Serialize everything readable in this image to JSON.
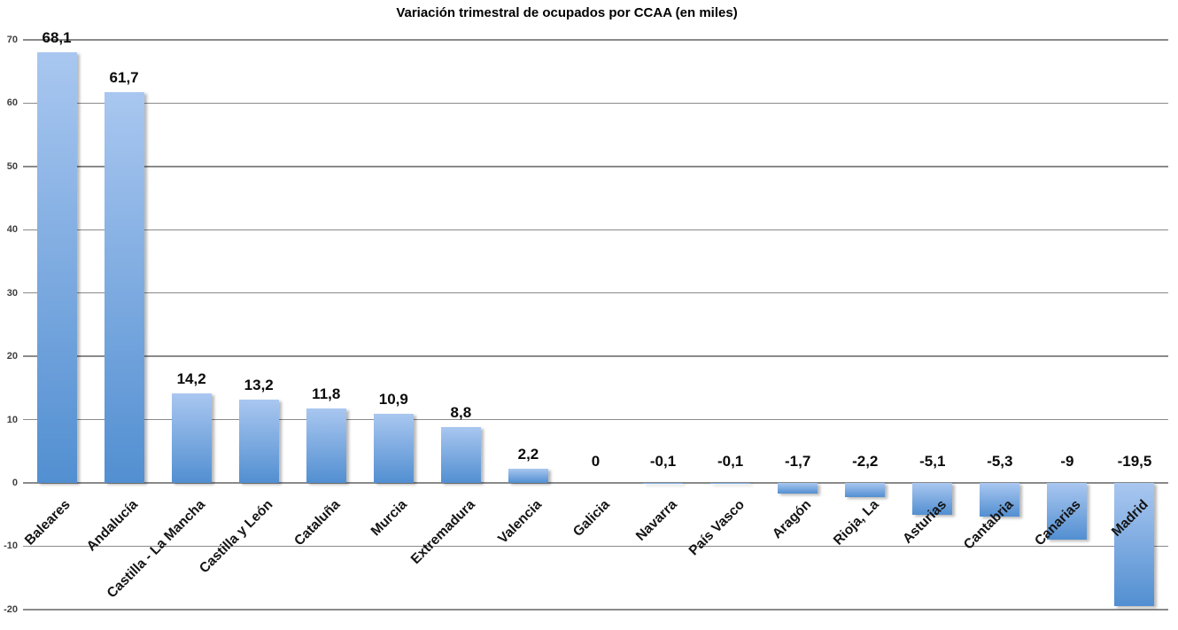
{
  "chart_data": {
    "type": "bar",
    "title": "Variación trimestral de ocupados por CCAA (en miles)",
    "categories": [
      "Baleares",
      "Andalucía",
      "Castilla - La Mancha",
      "Castilla y León",
      "Cataluña",
      "Murcia",
      "Extremadura",
      "Valencia",
      "Galicia",
      "Navarra",
      "País Vasco",
      "Aragón",
      "Rioja, La",
      "Asturias",
      "Cantabria",
      "Canarias",
      "Madrid"
    ],
    "values": [
      68.1,
      61.7,
      14.2,
      13.2,
      11.8,
      10.9,
      8.8,
      2.2,
      0,
      -0.1,
      -0.1,
      -1.7,
      -2.2,
      -5.1,
      -5.3,
      -9,
      -19.5
    ],
    "value_labels": [
      "68,1",
      "61,7",
      "14,2",
      "13,2",
      "11,8",
      "10,9",
      "8,8",
      "2,2",
      "0",
      "-0,1",
      "-0,1",
      "-1,7",
      "-2,2",
      "-5,1",
      "-5,3",
      "-9",
      "-19,5"
    ],
    "xlabel": "",
    "ylabel": "",
    "ylim": [
      -20,
      70
    ],
    "ytick_step": 10,
    "ytick_labels": [
      "70",
      "60",
      "50",
      "40",
      "30",
      "20",
      "10",
      "0",
      "-10",
      "-20"
    ],
    "grid": true,
    "legend": false,
    "x_label_rotation_deg": 45,
    "colors": {
      "bar_gradient_top": "#a9c7f0",
      "bar_gradient_bottom": "#528fd1",
      "gridline": "#8a8a8a",
      "background": "#ffffff",
      "value_label": "#0a0a0a"
    }
  }
}
